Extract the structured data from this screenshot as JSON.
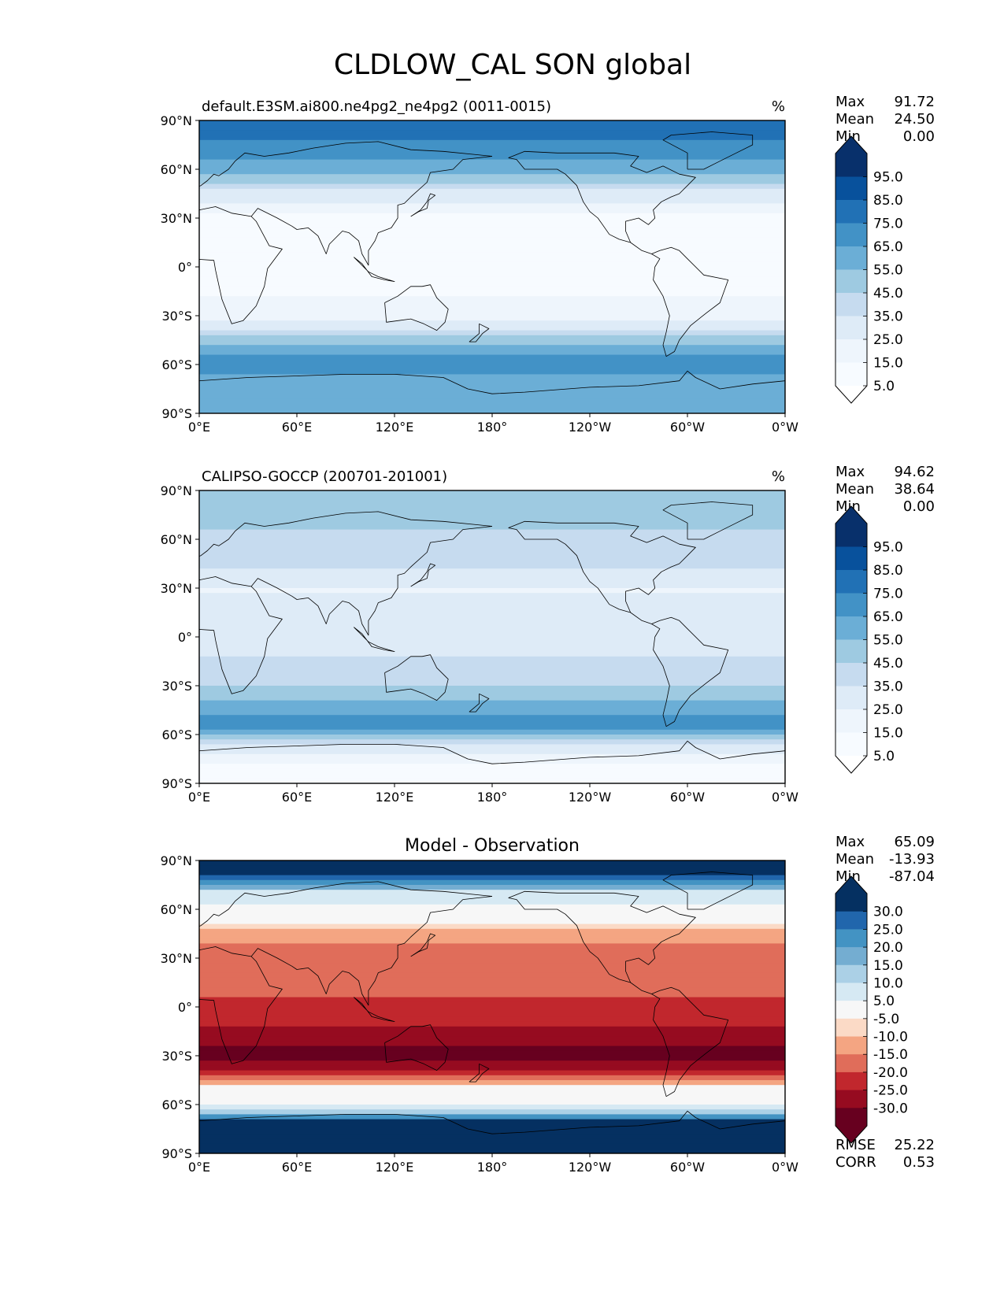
{
  "figure": {
    "title": "CLDLOW_CAL SON global"
  },
  "chart_data": [
    {
      "type": "heatmap",
      "title": "default.E3SM.ai800.ne4pg2_ne4pg2 (0011-0015)",
      "units": "%",
      "x_ticks": [
        "0°E",
        "60°E",
        "120°E",
        "180°",
        "120°W",
        "60°W",
        "0°W"
      ],
      "y_ticks": [
        "90°N",
        "60°N",
        "30°N",
        "0°",
        "30°S",
        "60°S",
        "90°S"
      ],
      "xlim": [
        0,
        360
      ],
      "ylim": [
        -90,
        90
      ],
      "stats": [
        {
          "label": "Max",
          "value": "91.72"
        },
        {
          "label": "Mean",
          "value": "24.50"
        },
        {
          "label": "Min",
          "value": "0.00"
        }
      ],
      "colorbar": {
        "labels": [
          "95.0",
          "85.0",
          "75.0",
          "65.0",
          "55.0",
          "45.0",
          "35.0",
          "25.0",
          "15.0",
          "5.0"
        ],
        "colors": [
          "#08306b",
          "#08519c",
          "#2171b5",
          "#4292c6",
          "#6baed6",
          "#9ecae1",
          "#c6dbef",
          "#deebf7",
          "#eef5fc",
          "#f7fbff"
        ]
      },
      "zonal_profile": [
        {
          "lat": 90,
          "value": 82
        },
        {
          "lat": 75,
          "value": 72
        },
        {
          "lat": 60,
          "value": 60
        },
        {
          "lat": 45,
          "value": 32
        },
        {
          "lat": 30,
          "value": 12
        },
        {
          "lat": 15,
          "value": 4
        },
        {
          "lat": 0,
          "value": 12
        },
        {
          "lat": -15,
          "value": 14
        },
        {
          "lat": -30,
          "value": 20
        },
        {
          "lat": -45,
          "value": 48
        },
        {
          "lat": -55,
          "value": 68
        },
        {
          "lat": -65,
          "value": 66
        },
        {
          "lat": -75,
          "value": 58
        },
        {
          "lat": -90,
          "value": 62
        }
      ]
    },
    {
      "type": "heatmap",
      "title": "CALIPSO-GOCCP (200701-201001)",
      "units": "%",
      "x_ticks": [
        "0°E",
        "60°E",
        "120°E",
        "180°",
        "120°W",
        "60°W",
        "0°W"
      ],
      "y_ticks": [
        "90°N",
        "60°N",
        "30°N",
        "0°",
        "30°S",
        "60°S",
        "90°S"
      ],
      "xlim": [
        0,
        360
      ],
      "ylim": [
        -90,
        90
      ],
      "stats": [
        {
          "label": "Max",
          "value": "94.62"
        },
        {
          "label": "Mean",
          "value": "38.64"
        },
        {
          "label": "Min",
          "value": "0.00"
        }
      ],
      "colorbar": {
        "labels": [
          "95.0",
          "85.0",
          "75.0",
          "65.0",
          "55.0",
          "45.0",
          "35.0",
          "25.0",
          "15.0",
          "5.0"
        ],
        "colors": [
          "#08306b",
          "#08519c",
          "#2171b5",
          "#4292c6",
          "#6baed6",
          "#9ecae1",
          "#c6dbef",
          "#deebf7",
          "#eef5fc",
          "#f7fbff"
        ]
      },
      "zonal_profile": [
        {
          "lat": 82,
          "value": 52
        },
        {
          "lat": 70,
          "value": 48
        },
        {
          "lat": 60,
          "value": 42
        },
        {
          "lat": 45,
          "value": 38
        },
        {
          "lat": 30,
          "value": 24
        },
        {
          "lat": 15,
          "value": 28
        },
        {
          "lat": 0,
          "value": 30
        },
        {
          "lat": -15,
          "value": 36
        },
        {
          "lat": -30,
          "value": 44
        },
        {
          "lat": -45,
          "value": 60
        },
        {
          "lat": -55,
          "value": 72
        },
        {
          "lat": -65,
          "value": 40
        },
        {
          "lat": -82,
          "value": 5
        }
      ]
    },
    {
      "type": "heatmap",
      "title": "Model - Observation",
      "x_ticks": [
        "0°E",
        "60°E",
        "120°E",
        "180°",
        "120°W",
        "60°W",
        "0°W"
      ],
      "y_ticks": [
        "90°N",
        "60°N",
        "30°N",
        "0°",
        "30°S",
        "60°S",
        "90°S"
      ],
      "xlim": [
        0,
        360
      ],
      "ylim": [
        -90,
        90
      ],
      "stats": [
        {
          "label": "Max",
          "value": "65.09"
        },
        {
          "label": "Mean",
          "value": "-13.93"
        },
        {
          "label": "Min",
          "value": "-87.04"
        }
      ],
      "metrics": [
        {
          "label": "RMSE",
          "value": "25.22"
        },
        {
          "label": "CORR",
          "value": "0.53"
        }
      ],
      "colorbar": {
        "labels": [
          "30.0",
          "25.0",
          "20.0",
          "15.0",
          "10.0",
          "5.0",
          "-5.0",
          "-10.0",
          "-15.0",
          "-20.0",
          "-25.0",
          "-30.0"
        ],
        "colors": [
          "#053061",
          "#2166ac",
          "#4393c3",
          "#74add1",
          "#abd0e6",
          "#d6e9f3",
          "#f7f7f7",
          "#fbdac6",
          "#f4a582",
          "#e06d5a",
          "#c1272d",
          "#960b20",
          "#67001f"
        ]
      },
      "zonal_profile": [
        {
          "lat": 82,
          "value": 32
        },
        {
          "lat": 70,
          "value": 8
        },
        {
          "lat": 60,
          "value": 4
        },
        {
          "lat": 45,
          "value": -12
        },
        {
          "lat": 30,
          "value": -20
        },
        {
          "lat": 15,
          "value": -18
        },
        {
          "lat": 0,
          "value": -22
        },
        {
          "lat": -15,
          "value": -26
        },
        {
          "lat": -30,
          "value": -32
        },
        {
          "lat": -40,
          "value": -24
        },
        {
          "lat": -50,
          "value": -4
        },
        {
          "lat": -60,
          "value": 2
        },
        {
          "lat": -70,
          "value": 30
        },
        {
          "lat": -82,
          "value": 32
        }
      ]
    }
  ]
}
